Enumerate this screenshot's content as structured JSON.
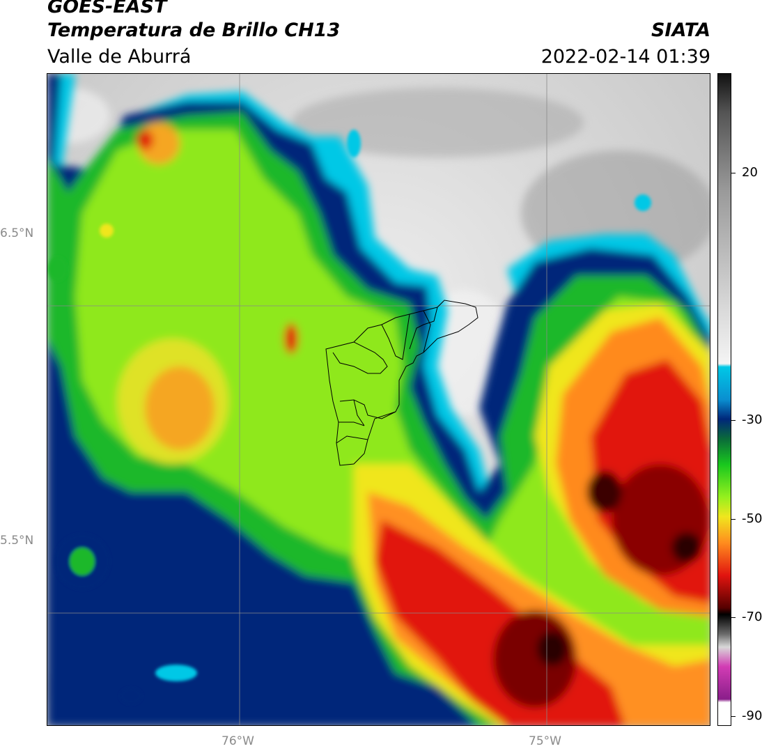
{
  "header": {
    "satellite": "GOES-EAST",
    "product": "Temperatura de Brillo CH13",
    "region": "Valle de Aburrá",
    "agency": "SIATA",
    "datetime": "2022-02-14 01:39"
  },
  "map": {
    "lat_labels": [
      "6.5°N",
      "5.5°N"
    ],
    "lon_labels": [
      "76°W",
      "75°W"
    ],
    "overlay": "municipal-boundaries"
  },
  "colorbar": {
    "labels": [
      "20",
      "-30",
      "-50",
      "-70",
      "-90"
    ],
    "colors": {
      "gray_warm": "#bdbdbd",
      "cyan": "#00c8e6",
      "navy": "#00277a",
      "green": "#19c81e",
      "lime": "#96f01e",
      "yellow": "#f0e61e",
      "orange": "#ff8c1e",
      "red": "#e1140f",
      "darkred": "#550000",
      "magenta": "#d23cb4"
    }
  }
}
